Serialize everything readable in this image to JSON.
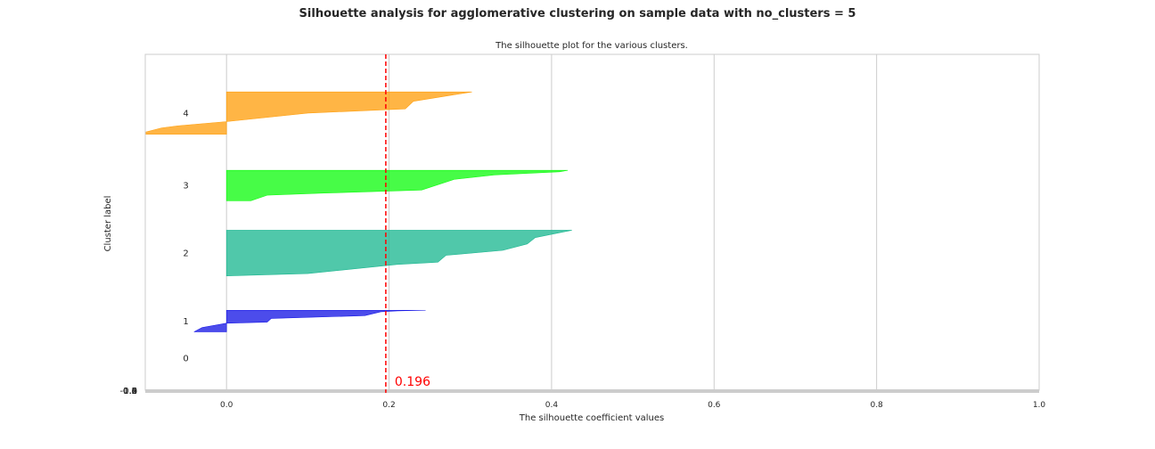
{
  "figure_title": "Silhouette analysis for agglomerative clustering on sample data with no_clusters = 5",
  "chart_data": {
    "type": "area",
    "title": "The silhouette plot for the various clusters.",
    "xlabel": "The silhouette coefficient values",
    "ylabel": "Cluster label",
    "xlim": [
      -0.1,
      1.0
    ],
    "xticks": [
      "0.0",
      "0.2",
      "0.4",
      "0.6",
      "0.8",
      "1.0"
    ],
    "xtick_values": [
      0.0,
      0.2,
      0.4,
      0.6,
      0.8,
      1.0
    ],
    "ylim": [
      0,
      420
    ],
    "grid": true,
    "average_silhouette": 0.196,
    "average_label": "0.196",
    "average_color": "#ff0000",
    "bottom_tick_labels": [
      "-0.2",
      "0.0",
      "0.2",
      "0.4",
      "0.6",
      "0.8",
      "1.0"
    ],
    "clusters": [
      {
        "label": "0",
        "color": "#000000",
        "y_start": 40,
        "y_end": 40,
        "profile": []
      },
      {
        "label": "1",
        "color": "#1a1ae6",
        "y_start": 73,
        "y_end": 100,
        "profile": [
          [
            0.245,
            1
          ],
          [
            0.21,
            0.97
          ],
          [
            0.19,
            0.93
          ],
          [
            0.17,
            0.75
          ],
          [
            0.055,
            0.62
          ],
          [
            0.05,
            0.45
          ],
          [
            0.0,
            0.4
          ],
          [
            -0.03,
            0.2
          ],
          [
            -0.04,
            0.0
          ]
        ]
      },
      {
        "label": "2",
        "color": "#1fb892",
        "y_start": 143,
        "y_end": 200,
        "profile": [
          [
            0.425,
            1
          ],
          [
            0.38,
            0.84
          ],
          [
            0.37,
            0.7
          ],
          [
            0.34,
            0.56
          ],
          [
            0.27,
            0.45
          ],
          [
            0.26,
            0.3
          ],
          [
            0.21,
            0.25
          ],
          [
            0.1,
            0.05
          ],
          [
            0.0,
            0.0
          ]
        ]
      },
      {
        "label": "3",
        "color": "#13fb13",
        "y_start": 237,
        "y_end": 275,
        "profile": [
          [
            0.42,
            1
          ],
          [
            0.41,
            0.95
          ],
          [
            0.33,
            0.85
          ],
          [
            0.28,
            0.7
          ],
          [
            0.24,
            0.35
          ],
          [
            0.12,
            0.25
          ],
          [
            0.05,
            0.18
          ],
          [
            0.03,
            0.0
          ],
          [
            0.0,
            0.0
          ]
        ]
      },
      {
        "label": "4",
        "color": "#ffa011",
        "y_start": 320,
        "y_end": 373,
        "profile": [
          [
            0.302,
            1
          ],
          [
            0.23,
            0.78
          ],
          [
            0.22,
            0.6
          ],
          [
            0.1,
            0.5
          ],
          [
            0.0,
            0.3
          ],
          [
            -0.06,
            0.2
          ],
          [
            -0.08,
            0.15
          ],
          [
            -0.1,
            0.05
          ],
          [
            -0.1,
            0.0
          ]
        ]
      }
    ]
  }
}
